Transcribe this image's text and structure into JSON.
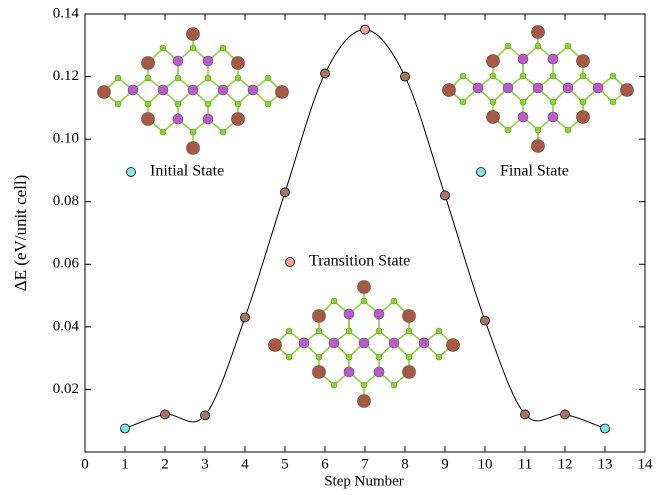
{
  "chart_data": {
    "type": "line",
    "x_label": "Step Number",
    "y_label": "ΔE (eV/unit cell)",
    "x": [
      1,
      2,
      3,
      4,
      5,
      6,
      7,
      8,
      9,
      10,
      11,
      12,
      13
    ],
    "values": [
      0.0075,
      0.012,
      0.0117,
      0.043,
      0.083,
      0.121,
      0.135,
      0.12,
      0.082,
      0.042,
      0.012,
      0.012,
      0.0075
    ],
    "point_colors": [
      "#86e3ea",
      "#a87565",
      "#a87565",
      "#a87565",
      "#a87565",
      "#a87565",
      "#f0a198",
      "#a87565",
      "#a87565",
      "#a87565",
      "#a87565",
      "#a87565",
      "#86e3ea"
    ],
    "color": "#000000",
    "xlim": [
      0,
      14
    ],
    "xticks": [
      0,
      1,
      2,
      3,
      4,
      5,
      6,
      7,
      8,
      9,
      10,
      11,
      12,
      13,
      14
    ],
    "ylim": [
      0,
      0.14
    ],
    "yticks": [
      0.02,
      0.04,
      0.06,
      0.08,
      {
        "value": 0.1,
        "label": "0.10"
      },
      0.12,
      0.14
    ],
    "annotations": [
      {
        "text": "Initial State",
        "color": "#86e3ea"
      },
      {
        "text": "Final State",
        "color": "#86e3ea"
      },
      {
        "text": "Transition State",
        "color": "#f0a198"
      }
    ]
  }
}
